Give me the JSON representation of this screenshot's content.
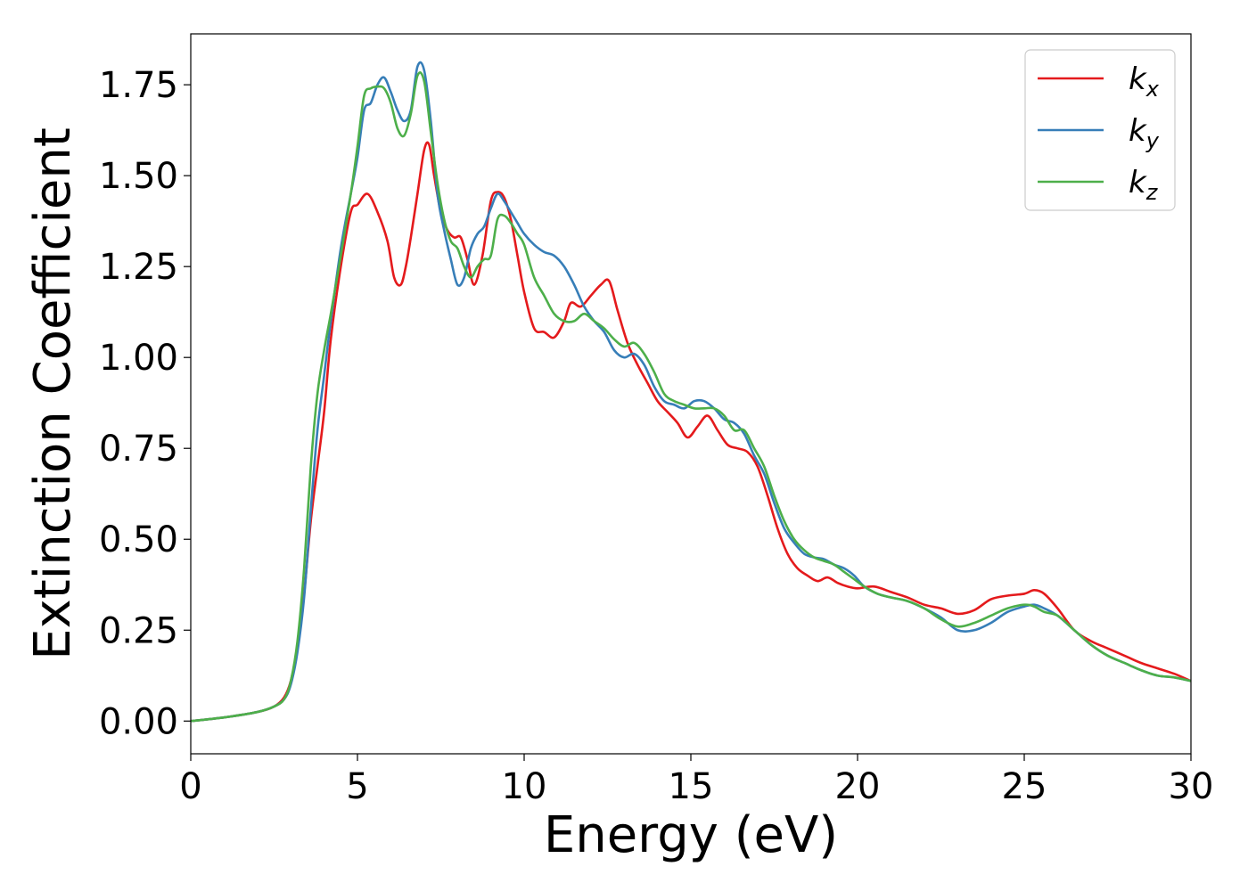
{
  "chart_data": {
    "type": "line",
    "title": "",
    "xlabel": "Energy (eV)",
    "ylabel": "Extinction Coefficient",
    "xlim": [
      0,
      30
    ],
    "ylim": [
      -0.09,
      1.89
    ],
    "xticks": [
      "0",
      "5",
      "10",
      "15",
      "20",
      "25",
      "30"
    ],
    "yticks": [
      "0.00",
      "0.25",
      "0.50",
      "0.75",
      "1.00",
      "1.25",
      "1.50",
      "1.75"
    ],
    "grid": false,
    "legend_position": "top-right",
    "series": [
      {
        "name": "k_x",
        "legend_main": "k",
        "legend_sub": "x",
        "color": "#e41a1c",
        "x": [
          0,
          1,
          2,
          2.5,
          2.8,
          3.0,
          3.2,
          3.4,
          3.6,
          3.8,
          4.0,
          4.2,
          4.5,
          4.8,
          5.0,
          5.3,
          5.6,
          5.9,
          6.1,
          6.3,
          6.45,
          6.6,
          6.8,
          7.0,
          7.15,
          7.3,
          7.5,
          7.7,
          7.9,
          8.1,
          8.3,
          8.5,
          8.75,
          9.0,
          9.2,
          9.4,
          9.6,
          9.8,
          10.0,
          10.3,
          10.6,
          10.9,
          11.2,
          11.4,
          11.7,
          12.0,
          12.3,
          12.55,
          12.8,
          13.1,
          13.4,
          13.7,
          14.0,
          14.3,
          14.6,
          14.9,
          15.2,
          15.5,
          15.8,
          16.1,
          16.4,
          16.7,
          17.0,
          17.3,
          17.6,
          17.9,
          18.2,
          18.5,
          18.8,
          19.1,
          19.4,
          19.7,
          20.0,
          20.5,
          21.0,
          21.5,
          22.0,
          22.5,
          23.0,
          23.5,
          24.0,
          24.5,
          25.0,
          25.3,
          25.6,
          26.0,
          26.5,
          27.0,
          27.5,
          28.0,
          28.5,
          29.0,
          29.5,
          30.0
        ],
        "values": [
          0,
          0.01,
          0.025,
          0.04,
          0.065,
          0.11,
          0.2,
          0.35,
          0.55,
          0.7,
          0.85,
          1.05,
          1.25,
          1.4,
          1.42,
          1.45,
          1.4,
          1.32,
          1.22,
          1.2,
          1.25,
          1.33,
          1.45,
          1.57,
          1.585,
          1.5,
          1.4,
          1.35,
          1.33,
          1.33,
          1.27,
          1.2,
          1.28,
          1.43,
          1.455,
          1.44,
          1.38,
          1.28,
          1.18,
          1.08,
          1.07,
          1.055,
          1.1,
          1.15,
          1.14,
          1.17,
          1.2,
          1.21,
          1.13,
          1.04,
          0.98,
          0.93,
          0.88,
          0.85,
          0.82,
          0.78,
          0.81,
          0.84,
          0.8,
          0.76,
          0.75,
          0.74,
          0.7,
          0.62,
          0.53,
          0.46,
          0.42,
          0.4,
          0.385,
          0.395,
          0.38,
          0.37,
          0.365,
          0.37,
          0.355,
          0.34,
          0.32,
          0.31,
          0.295,
          0.305,
          0.335,
          0.345,
          0.35,
          0.36,
          0.35,
          0.31,
          0.25,
          0.22,
          0.2,
          0.18,
          0.16,
          0.145,
          0.13,
          0.11
        ]
      },
      {
        "name": "k_y",
        "legend_main": "k",
        "legend_sub": "y",
        "color": "#377eb8",
        "x": [
          0,
          1,
          2,
          2.5,
          2.8,
          3.0,
          3.2,
          3.4,
          3.6,
          3.8,
          4.0,
          4.2,
          4.5,
          4.8,
          5.0,
          5.2,
          5.4,
          5.6,
          5.8,
          6.0,
          6.2,
          6.4,
          6.6,
          6.8,
          7.0,
          7.2,
          7.4,
          7.6,
          7.8,
          8.0,
          8.2,
          8.4,
          8.6,
          8.8,
          9.0,
          9.2,
          9.4,
          9.6,
          9.8,
          10.0,
          10.3,
          10.6,
          10.9,
          11.2,
          11.5,
          11.8,
          12.1,
          12.4,
          12.7,
          13.0,
          13.3,
          13.6,
          13.9,
          14.2,
          14.5,
          14.8,
          15.1,
          15.4,
          15.7,
          16.0,
          16.3,
          16.6,
          16.9,
          17.2,
          17.5,
          17.8,
          18.1,
          18.4,
          18.7,
          19.0,
          19.3,
          19.6,
          19.9,
          20.2,
          20.6,
          21.0,
          21.5,
          22.0,
          22.5,
          23.0,
          23.5,
          24.0,
          24.5,
          25.0,
          25.3,
          25.6,
          26.0,
          26.5,
          27.0,
          27.5,
          28.0,
          28.5,
          29.0,
          29.5,
          30.0
        ],
        "values": [
          0,
          0.01,
          0.025,
          0.04,
          0.06,
          0.1,
          0.19,
          0.34,
          0.58,
          0.8,
          0.95,
          1.1,
          1.3,
          1.45,
          1.55,
          1.68,
          1.7,
          1.75,
          1.77,
          1.73,
          1.68,
          1.65,
          1.68,
          1.8,
          1.79,
          1.65,
          1.45,
          1.35,
          1.27,
          1.2,
          1.22,
          1.3,
          1.34,
          1.36,
          1.41,
          1.45,
          1.43,
          1.4,
          1.37,
          1.34,
          1.31,
          1.29,
          1.28,
          1.25,
          1.2,
          1.14,
          1.1,
          1.07,
          1.02,
          1.0,
          1.01,
          0.98,
          0.92,
          0.88,
          0.87,
          0.86,
          0.88,
          0.88,
          0.86,
          0.83,
          0.82,
          0.79,
          0.73,
          0.68,
          0.6,
          0.53,
          0.49,
          0.46,
          0.45,
          0.445,
          0.43,
          0.42,
          0.4,
          0.37,
          0.35,
          0.34,
          0.33,
          0.31,
          0.285,
          0.25,
          0.25,
          0.27,
          0.3,
          0.315,
          0.32,
          0.31,
          0.29,
          0.25,
          0.21,
          0.18,
          0.16,
          0.14,
          0.125,
          0.12,
          0.11
        ]
      },
      {
        "name": "k_z",
        "legend_main": "k",
        "legend_sub": "z",
        "color": "#4daf4a",
        "x": [
          0,
          1,
          2,
          2.5,
          2.8,
          3.0,
          3.2,
          3.4,
          3.6,
          3.8,
          4.0,
          4.2,
          4.5,
          4.8,
          5.0,
          5.2,
          5.4,
          5.6,
          5.8,
          6.0,
          6.2,
          6.4,
          6.6,
          6.8,
          7.0,
          7.2,
          7.4,
          7.6,
          7.8,
          8.0,
          8.2,
          8.4,
          8.6,
          8.8,
          9.0,
          9.2,
          9.4,
          9.6,
          9.8,
          10.0,
          10.3,
          10.6,
          10.9,
          11.2,
          11.5,
          11.8,
          12.1,
          12.4,
          12.7,
          13.0,
          13.3,
          13.6,
          13.9,
          14.2,
          14.5,
          14.8,
          15.1,
          15.4,
          15.7,
          16.0,
          16.3,
          16.6,
          16.9,
          17.2,
          17.5,
          17.8,
          18.1,
          18.4,
          18.7,
          19.0,
          19.3,
          19.6,
          19.9,
          20.2,
          20.6,
          21.0,
          21.5,
          22.0,
          22.5,
          23.0,
          23.5,
          24.0,
          24.5,
          25.0,
          25.3,
          25.6,
          26.0,
          26.5,
          27.0,
          27.5,
          28.0,
          28.5,
          29.0,
          29.5,
          30.0
        ],
        "values": [
          0,
          0.01,
          0.025,
          0.04,
          0.06,
          0.11,
          0.22,
          0.42,
          0.7,
          0.9,
          1.02,
          1.12,
          1.28,
          1.45,
          1.58,
          1.72,
          1.74,
          1.745,
          1.74,
          1.7,
          1.63,
          1.61,
          1.67,
          1.775,
          1.76,
          1.62,
          1.48,
          1.38,
          1.32,
          1.3,
          1.25,
          1.22,
          1.25,
          1.27,
          1.28,
          1.38,
          1.39,
          1.37,
          1.34,
          1.31,
          1.22,
          1.17,
          1.12,
          1.1,
          1.1,
          1.12,
          1.1,
          1.08,
          1.05,
          1.03,
          1.04,
          1.01,
          0.96,
          0.9,
          0.88,
          0.87,
          0.86,
          0.86,
          0.86,
          0.84,
          0.8,
          0.8,
          0.75,
          0.7,
          0.62,
          0.55,
          0.5,
          0.47,
          0.45,
          0.44,
          0.43,
          0.41,
          0.39,
          0.37,
          0.35,
          0.34,
          0.33,
          0.31,
          0.28,
          0.26,
          0.27,
          0.29,
          0.31,
          0.32,
          0.315,
          0.3,
          0.29,
          0.25,
          0.21,
          0.18,
          0.16,
          0.14,
          0.125,
          0.12,
          0.11
        ]
      }
    ]
  }
}
